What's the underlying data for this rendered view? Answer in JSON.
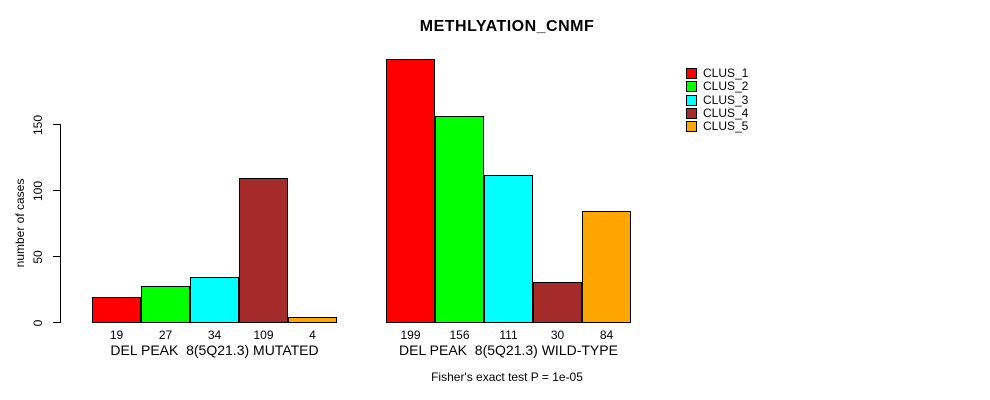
{
  "chart_data": {
    "type": "bar",
    "title": "METHLYATION_CNMF",
    "ylabel": "number of cases",
    "ylim": [
      0,
      199
    ],
    "yticks": [
      0,
      50,
      100,
      150
    ],
    "grid": false,
    "legend_position": "right-inside-top",
    "legend": [
      {
        "label": "CLUS_1",
        "color": "#ff0000"
      },
      {
        "label": "CLUS_2",
        "color": "#00ff00"
      },
      {
        "label": "CLUS_3",
        "color": "#00ffff"
      },
      {
        "label": "CLUS_4",
        "color": "#a52a2a"
      },
      {
        "label": "CLUS_5",
        "color": "#ffa500"
      }
    ],
    "groups": [
      {
        "label": "DEL PEAK  8(5Q21.3) MUTATED",
        "values": [
          19,
          27,
          34,
          109,
          4
        ]
      },
      {
        "label": "DEL PEAK  8(5Q21.3) WILD-TYPE",
        "values": [
          199,
          156,
          111,
          30,
          84
        ]
      }
    ],
    "bar_value_labels_shown": true,
    "footnote": "Fisher's exact test P = 1e-05"
  }
}
